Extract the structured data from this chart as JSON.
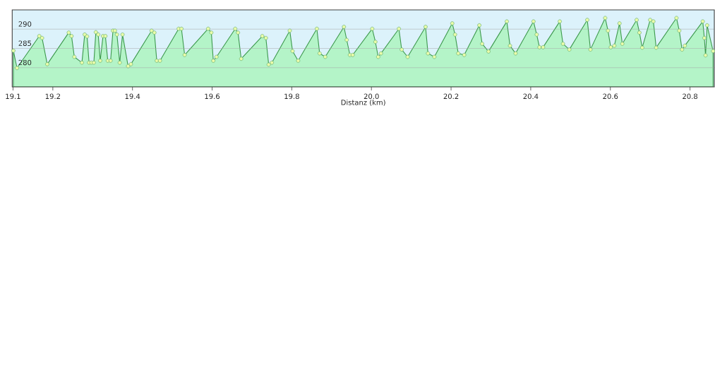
{
  "chart_data": {
    "type": "area",
    "xlabel": "Distanz  (km)",
    "x": [
      19.101,
      19.11,
      19.166,
      19.173,
      19.186,
      19.24,
      19.247,
      19.254,
      19.273,
      19.28,
      19.286,
      19.291,
      19.297,
      19.303,
      19.308,
      19.314,
      19.319,
      19.326,
      19.332,
      19.338,
      19.345,
      19.351,
      19.356,
      19.361,
      19.368,
      19.375,
      19.389,
      19.396,
      19.448,
      19.455,
      19.461,
      19.469,
      19.516,
      19.523,
      19.531,
      19.59,
      19.598,
      19.603,
      19.611,
      19.658,
      19.665,
      19.673,
      19.726,
      19.735,
      19.742,
      19.75,
      19.795,
      19.802,
      19.816,
      19.863,
      19.87,
      19.884,
      19.931,
      19.938,
      19.946,
      19.953,
      20.002,
      20.01,
      20.017,
      20.024,
      20.069,
      20.076,
      20.091,
      20.136,
      20.142,
      20.158,
      20.203,
      20.21,
      20.218,
      20.233,
      20.271,
      20.278,
      20.294,
      20.34,
      20.348,
      20.362,
      20.407,
      20.415,
      20.422,
      20.431,
      20.473,
      20.481,
      20.497,
      20.542,
      20.55,
      20.587,
      20.594,
      20.601,
      20.61,
      20.623,
      20.63,
      20.666,
      20.673,
      20.68,
      20.7,
      20.708,
      20.715,
      20.766,
      20.773,
      20.78,
      20.787,
      20.832,
      20.836,
      20.839,
      20.843,
      20.858
    ],
    "values": [
      284.4,
      279.9,
      288.2,
      287.7,
      280.9,
      289.1,
      288.2,
      282.8,
      281.3,
      288.6,
      288.1,
      281.3,
      281.3,
      281.3,
      289.2,
      288.6,
      281.8,
      288.2,
      288.2,
      281.8,
      281.8,
      289.6,
      289.6,
      288.6,
      281.3,
      288.6,
      280.4,
      280.9,
      289.6,
      289.1,
      281.8,
      281.8,
      290.1,
      290.1,
      283.3,
      290.1,
      289.1,
      281.8,
      282.8,
      290.1,
      289.1,
      282.3,
      288.2,
      287.7,
      280.8,
      281.3,
      289.6,
      284.3,
      281.8,
      290.1,
      283.7,
      282.8,
      290.6,
      287.2,
      283.3,
      283.3,
      290.1,
      286.7,
      282.8,
      283.7,
      290.1,
      284.7,
      282.8,
      290.6,
      283.7,
      282.8,
      291.5,
      288.6,
      283.7,
      283.3,
      291.0,
      286.2,
      284.2,
      292.0,
      285.7,
      283.7,
      292.0,
      288.6,
      285.3,
      285.3,
      292.0,
      286.2,
      284.7,
      292.4,
      284.7,
      292.9,
      289.6,
      285.3,
      285.7,
      291.5,
      286.2,
      292.4,
      289.1,
      285.2,
      292.4,
      292.0,
      285.2,
      292.9,
      289.6,
      284.7,
      285.7,
      292.0,
      287.7,
      283.2,
      291.0,
      284.3
    ],
    "color": "#b4f4c8",
    "marker": "circle",
    "grid": "y",
    "bands": [
      {
        "axis": "y",
        "from": 275,
        "to": 295,
        "color": "#dcf2fb"
      }
    ],
    "xlim": [
      19.098,
      20.861
    ],
    "ylim": [
      275,
      295
    ],
    "xticks": [
      19.1,
      19.2,
      19.4,
      19.6,
      19.8,
      {
        "value": 20,
        "label": "20.0"
      },
      20.2,
      20.4,
      20.6,
      20.8
    ],
    "yticks": [
      280,
      285,
      290
    ]
  }
}
